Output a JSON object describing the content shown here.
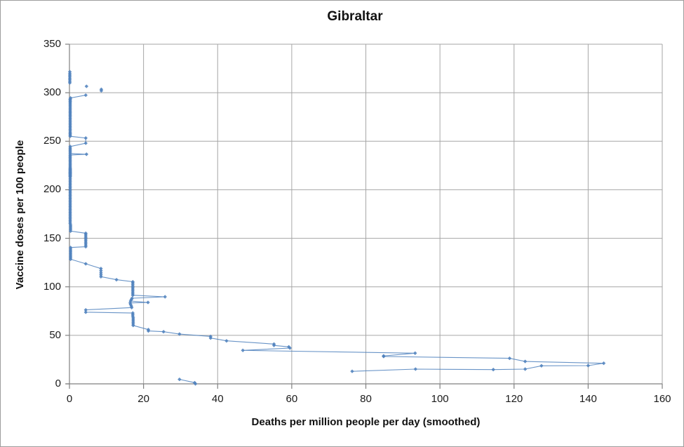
{
  "window": {
    "background": "#FFFFFF",
    "border_color": "#9D9D9D"
  },
  "chart_data": {
    "type": "line",
    "subtype": "connected-scatter-with-diamond-markers",
    "title": "Gibraltar",
    "xlabel": "Deaths per million people per day (smoothed)",
    "ylabel": "Vaccine doses per 100 people",
    "xlim": [
      0,
      160
    ],
    "ylim": [
      0,
      350
    ],
    "xticks": [
      0,
      20,
      40,
      60,
      80,
      100,
      120,
      140,
      160
    ],
    "yticks": [
      0,
      50,
      100,
      150,
      200,
      250,
      300,
      350
    ],
    "grid": true,
    "legend": false,
    "colors": {
      "series": "#4F81BD",
      "gridline": "#A6A6A6",
      "axis": "#808080",
      "text": "#1A1A1A"
    },
    "x_is": "deaths_per_million_per_day",
    "y_is": "vaccine_doses_per_100_people",
    "segments": [
      [
        [
          34.0,
          0.0
        ],
        [
          33.8,
          1.2
        ],
        [
          29.7,
          4.6
        ]
      ],
      [
        [
          76.3,
          12.9
        ],
        [
          93.4,
          15.2
        ],
        [
          114.4,
          14.7
        ],
        [
          123.0,
          15.2
        ],
        [
          127.4,
          18.6
        ],
        [
          140.0,
          18.8
        ],
        [
          144.2,
          21.2
        ],
        [
          123.0,
          23.1
        ],
        [
          118.8,
          26.3
        ],
        [
          84.8,
          28.2
        ],
        [
          84.8,
          28.8
        ],
        [
          93.3,
          31.6
        ],
        [
          46.8,
          34.5
        ],
        [
          59.5,
          36.9
        ],
        [
          59.2,
          38.1
        ],
        [
          55.2,
          39.6
        ],
        [
          55.2,
          41.0
        ],
        [
          42.4,
          44.3
        ],
        [
          38.1,
          47.2
        ],
        [
          38.1,
          48.9
        ],
        [
          29.7,
          51.3
        ],
        [
          25.4,
          53.7
        ],
        [
          21.3,
          54.5
        ],
        [
          21.3,
          55.9
        ],
        [
          17.2,
          60.2
        ],
        [
          17.2,
          61.8
        ],
        [
          17.2,
          63.4
        ],
        [
          17.2,
          65.0
        ],
        [
          17.2,
          66.6
        ],
        [
          17.2,
          68.2
        ],
        [
          17.1,
          69.8
        ],
        [
          17.1,
          71.4
        ],
        [
          17.1,
          73.0
        ],
        [
          4.4,
          73.8
        ],
        [
          4.4,
          76.2
        ],
        [
          16.8,
          78.6
        ],
        [
          16.7,
          80.2
        ],
        [
          16.5,
          81.8
        ],
        [
          16.4,
          83.4
        ],
        [
          21.2,
          83.9
        ],
        [
          16.5,
          85.3
        ],
        [
          16.7,
          86.8
        ],
        [
          16.9,
          88.2
        ],
        [
          25.8,
          89.7
        ],
        [
          17.1,
          91.3
        ],
        [
          17.1,
          92.8
        ],
        [
          17.1,
          94.4
        ],
        [
          17.1,
          96.0
        ],
        [
          17.1,
          97.6
        ],
        [
          17.1,
          99.2
        ],
        [
          17.1,
          100.8
        ],
        [
          17.1,
          102.4
        ],
        [
          17.1,
          104.0
        ],
        [
          17.1,
          105.2
        ],
        [
          12.7,
          107.3
        ],
        [
          8.5,
          110.4
        ],
        [
          8.5,
          112.4
        ],
        [
          8.5,
          114.4
        ],
        [
          8.5,
          116.6
        ],
        [
          8.5,
          118.8
        ],
        [
          4.4,
          123.7
        ],
        [
          0.3,
          128.4
        ],
        [
          0.3,
          129.9
        ],
        [
          0.3,
          131.4
        ],
        [
          0.3,
          132.9
        ],
        [
          0.3,
          134.4
        ],
        [
          0.3,
          136.0
        ],
        [
          0.3,
          137.5
        ],
        [
          0.3,
          139.0
        ],
        [
          0.3,
          140.5
        ],
        [
          4.4,
          141.3
        ],
        [
          4.4,
          142.8
        ],
        [
          4.4,
          144.4
        ],
        [
          4.4,
          146.0
        ],
        [
          4.4,
          147.6
        ],
        [
          4.4,
          149.2
        ],
        [
          4.4,
          150.8
        ],
        [
          4.4,
          152.4
        ],
        [
          4.4,
          154.0
        ],
        [
          4.4,
          155.2
        ],
        [
          0.3,
          157.4
        ],
        [
          0.3,
          159.0
        ],
        [
          0.3,
          160.6
        ],
        [
          0.3,
          162.2
        ],
        [
          0.3,
          163.7
        ],
        [
          0.2,
          165.3
        ],
        [
          0.2,
          166.9
        ],
        [
          0.2,
          168.5
        ],
        [
          0.2,
          170.1
        ],
        [
          0.2,
          171.7
        ],
        [
          0.2,
          173.3
        ],
        [
          0.2,
          174.9
        ],
        [
          0.2,
          176.5
        ],
        [
          0.2,
          178.1
        ],
        [
          0.2,
          179.7
        ],
        [
          0.2,
          181.3
        ],
        [
          0.2,
          182.9
        ],
        [
          0.2,
          184.5
        ],
        [
          0.2,
          186.1
        ],
        [
          0.2,
          187.7
        ],
        [
          0.2,
          189.3
        ],
        [
          0.2,
          190.9
        ],
        [
          0.2,
          192.5
        ],
        [
          0.2,
          194.1
        ],
        [
          0.2,
          195.7
        ],
        [
          0.2,
          197.3
        ],
        [
          0.2,
          198.9
        ],
        [
          0.2,
          200.5
        ],
        [
          0.2,
          202.1
        ],
        [
          0.2,
          203.7
        ],
        [
          0.2,
          205.3
        ],
        [
          0.2,
          206.9
        ],
        [
          0.2,
          208.5
        ],
        [
          0.2,
          210.1
        ],
        [
          0.2,
          211.7
        ],
        [
          0.2,
          213.3
        ],
        [
          0.2,
          214.1
        ],
        [
          0.2,
          214.9
        ],
        [
          0.2,
          215.7
        ],
        [
          0.2,
          216.5
        ],
        [
          0.2,
          217.3
        ],
        [
          0.2,
          218.1
        ],
        [
          0.2,
          218.9
        ],
        [
          0.2,
          219.7
        ],
        [
          0.2,
          220.5
        ],
        [
          0.2,
          221.3
        ],
        [
          0.2,
          222.1
        ],
        [
          0.2,
          223.4
        ],
        [
          0.2,
          224.8
        ],
        [
          0.2,
          226.2
        ],
        [
          0.2,
          227.6
        ],
        [
          0.2,
          229.0
        ],
        [
          0.2,
          230.4
        ],
        [
          0.2,
          231.8
        ],
        [
          0.2,
          233.2
        ],
        [
          0.2,
          234.6
        ],
        [
          0.2,
          235.8
        ],
        [
          4.6,
          236.6
        ],
        [
          0.2,
          237.4
        ],
        [
          0.2,
          238.8
        ],
        [
          0.2,
          240.2
        ],
        [
          0.2,
          241.6
        ],
        [
          0.2,
          243.0
        ],
        [
          0.2,
          244.6
        ],
        [
          4.4,
          248.0
        ],
        [
          4.4,
          253.3
        ],
        [
          0.2,
          255.1
        ],
        [
          0.2,
          256.4
        ],
        [
          0.2,
          257.7
        ],
        [
          0.2,
          259.0
        ],
        [
          0.2,
          260.6
        ],
        [
          0.2,
          262.2
        ],
        [
          0.2,
          263.8
        ],
        [
          0.2,
          265.4
        ],
        [
          0.2,
          267.0
        ],
        [
          0.2,
          268.6
        ],
        [
          0.2,
          270.2
        ],
        [
          0.2,
          271.8
        ],
        [
          0.2,
          273.4
        ],
        [
          0.2,
          275.0
        ],
        [
          0.2,
          276.5
        ],
        [
          0.2,
          278.0
        ],
        [
          0.2,
          279.5
        ],
        [
          0.2,
          281.0
        ],
        [
          0.2,
          282.5
        ],
        [
          0.2,
          284.0
        ],
        [
          0.2,
          285.5
        ],
        [
          0.2,
          287.0
        ],
        [
          0.2,
          288.5
        ],
        [
          0.2,
          290.0
        ],
        [
          0.2,
          291.2
        ],
        [
          0.2,
          292.4
        ],
        [
          0.2,
          293.5
        ],
        [
          0.3,
          294.6
        ],
        [
          4.4,
          297.5
        ]
      ],
      [
        [
          8.6,
          302.0
        ],
        [
          8.6,
          303.5
        ]
      ],
      [
        [
          4.6,
          306.6
        ]
      ],
      [
        [
          0.1,
          310.2
        ],
        [
          0.1,
          311.8
        ],
        [
          0.1,
          313.4
        ],
        [
          0.1,
          315.0
        ],
        [
          0.1,
          316.6
        ],
        [
          0.1,
          318.2
        ],
        [
          0.1,
          319.8
        ],
        [
          0.1,
          321.6
        ]
      ]
    ]
  }
}
